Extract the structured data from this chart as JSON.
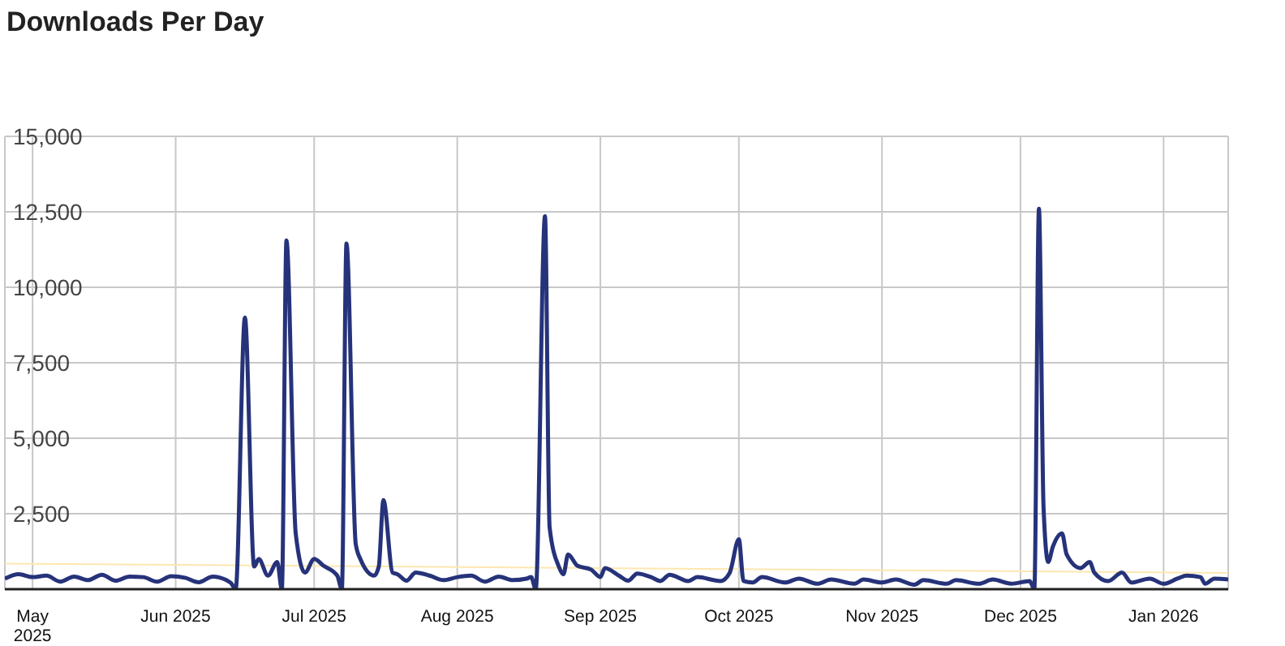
{
  "chart_data": {
    "type": "line",
    "title": "Downloads Per Day",
    "xlim": [
      "2025-04-25",
      "2026-01-15"
    ],
    "xticks": [
      {
        "value": "2025-05-01",
        "label": "May 2025"
      },
      {
        "value": "2025-06-01",
        "label": "Jun 2025"
      },
      {
        "value": "2025-07-01",
        "label": "Jul 2025"
      },
      {
        "value": "2025-08-01",
        "label": "Aug 2025"
      },
      {
        "value": "2025-09-01",
        "label": "Sep 2025"
      },
      {
        "value": "2025-10-01",
        "label": "Oct 2025"
      },
      {
        "value": "2025-11-01",
        "label": "Nov 2025"
      },
      {
        "value": "2025-12-01",
        "label": "Dec 2025"
      },
      {
        "value": "2026-01-01",
        "label": "Jan 2026"
      }
    ],
    "ylim": [
      0,
      15000
    ],
    "yticks": [
      {
        "value": 0,
        "label": null
      },
      {
        "value": 2500,
        "label": "2,500"
      },
      {
        "value": 5000,
        "label": "5,000"
      },
      {
        "value": 7500,
        "label": "7,500"
      },
      {
        "value": 10000,
        "label": "10,000"
      },
      {
        "value": 12500,
        "label": "12,500"
      },
      {
        "value": 15000,
        "label": "15,000"
      }
    ],
    "grid": true,
    "legend": false,
    "marker": "none",
    "line_style": "solid",
    "series": [
      {
        "color": "#fde7b0",
        "x": [
          "2025-04-25",
          "2026-01-15"
        ],
        "values": [
          850,
          540
        ]
      },
      {
        "color": "#26337a",
        "x": [
          "2025-04-25",
          "2025-04-28",
          "2025-05-01",
          "2025-05-04",
          "2025-05-07",
          "2025-05-10",
          "2025-05-13",
          "2025-05-16",
          "2025-05-19",
          "2025-05-22",
          "2025-05-25",
          "2025-05-28",
          "2025-05-31",
          "2025-06-03",
          "2025-06-06",
          "2025-06-09",
          "2025-06-12",
          "2025-06-13",
          "2025-06-14",
          "2025-06-16",
          "2025-06-18",
          "2025-06-19",
          "2025-06-21",
          "2025-06-23",
          "2025-06-24",
          "2025-06-25",
          "2025-06-27",
          "2025-06-29",
          "2025-07-01",
          "2025-07-03",
          "2025-07-06",
          "2025-07-07",
          "2025-07-08",
          "2025-07-10",
          "2025-07-11",
          "2025-07-14",
          "2025-07-15",
          "2025-07-16",
          "2025-07-18",
          "2025-07-19",
          "2025-07-21",
          "2025-07-23",
          "2025-07-26",
          "2025-07-29",
          "2025-08-01",
          "2025-08-04",
          "2025-08-07",
          "2025-08-10",
          "2025-08-13",
          "2025-08-16",
          "2025-08-17",
          "2025-08-18",
          "2025-08-20",
          "2025-08-21",
          "2025-08-23",
          "2025-08-24",
          "2025-08-25",
          "2025-08-27",
          "2025-08-30",
          "2025-09-01",
          "2025-09-02",
          "2025-09-05",
          "2025-09-07",
          "2025-09-09",
          "2025-09-12",
          "2025-09-14",
          "2025-09-16",
          "2025-09-20",
          "2025-09-22",
          "2025-09-27",
          "2025-09-29",
          "2025-10-01",
          "2025-10-02",
          "2025-10-04",
          "2025-10-06",
          "2025-10-11",
          "2025-10-14",
          "2025-10-18",
          "2025-10-21",
          "2025-10-26",
          "2025-10-28",
          "2025-11-01",
          "2025-11-04",
          "2025-11-08",
          "2025-11-10",
          "2025-11-15",
          "2025-11-17",
          "2025-11-22",
          "2025-11-25",
          "2025-11-29",
          "2025-12-03",
          "2025-12-04",
          "2025-12-05",
          "2025-12-06",
          "2025-12-07",
          "2025-12-08",
          "2025-12-10",
          "2025-12-11",
          "2025-12-14",
          "2025-12-16",
          "2025-12-17",
          "2025-12-20",
          "2025-12-23",
          "2025-12-25",
          "2025-12-29",
          "2026-01-01",
          "2026-01-04",
          "2026-01-06",
          "2026-01-09",
          "2026-01-10",
          "2026-01-12",
          "2026-01-15"
        ],
        "values": [
          350,
          500,
          400,
          450,
          250,
          420,
          300,
          480,
          280,
          420,
          400,
          250,
          430,
          380,
          230,
          420,
          300,
          200,
          0,
          9000,
          750,
          1000,
          450,
          900,
          0,
          11550,
          1850,
          550,
          1000,
          780,
          450,
          0,
          11450,
          1500,
          1000,
          450,
          750,
          2950,
          550,
          500,
          280,
          550,
          450,
          300,
          400,
          450,
          250,
          420,
          300,
          350,
          400,
          0,
          12350,
          2050,
          750,
          500,
          1150,
          780,
          650,
          400,
          700,
          450,
          280,
          520,
          400,
          270,
          480,
          270,
          400,
          270,
          540,
          1650,
          270,
          220,
          400,
          220,
          350,
          180,
          320,
          180,
          320,
          220,
          320,
          150,
          300,
          180,
          300,
          180,
          320,
          180,
          270,
          0,
          12600,
          2700,
          900,
          1400,
          1850,
          1150,
          700,
          900,
          550,
          270,
          550,
          220,
          350,
          180,
          350,
          450,
          400,
          180,
          350,
          320
        ]
      }
    ]
  }
}
